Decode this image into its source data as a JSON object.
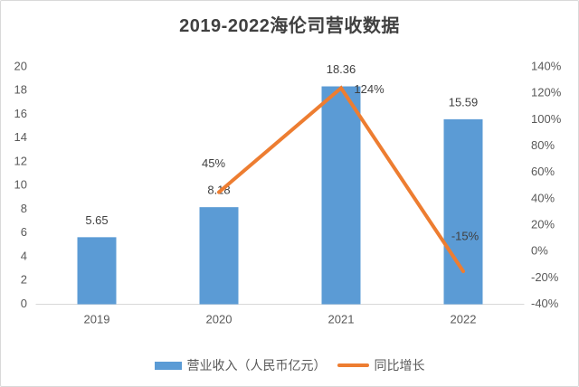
{
  "chart_data": {
    "type": "bar+line",
    "title": "2019-2022海伦司营收数据",
    "categories": [
      "2019",
      "2020",
      "2021",
      "2022"
    ],
    "series": [
      {
        "name": "营业收入（人民币亿元）",
        "type": "bar",
        "axis": "left",
        "color": "#5B9BD5",
        "values": [
          5.65,
          8.18,
          18.36,
          15.59
        ],
        "labels": [
          "5.65",
          "8.18",
          "18.36",
          "15.59"
        ]
      },
      {
        "name": "同比增长",
        "type": "line",
        "axis": "right",
        "color": "#ED7D31",
        "x": [
          "2020",
          "2021",
          "2022"
        ],
        "values": [
          45,
          124,
          -15
        ],
        "labels": [
          "45%",
          "124%",
          "-15%"
        ]
      }
    ],
    "left_axis": {
      "min": 0,
      "max": 20,
      "step": 2,
      "ticks": [
        "0",
        "2",
        "4",
        "6",
        "8",
        "10",
        "12",
        "14",
        "16",
        "18",
        "20"
      ]
    },
    "right_axis": {
      "min": -40,
      "max": 140,
      "step": 20,
      "ticks": [
        "-40%",
        "-20%",
        "0%",
        "20%",
        "40%",
        "60%",
        "80%",
        "100%",
        "120%",
        "140%"
      ]
    },
    "legend": {
      "position": "bottom",
      "items": [
        "营业收入（人民币亿元）",
        "同比增长"
      ]
    },
    "grid": "off",
    "axis_line_color": "#D9D9D9"
  }
}
